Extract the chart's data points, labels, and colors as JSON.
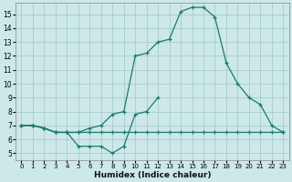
{
  "xlabel": "Humidex (Indice chaleur)",
  "bg_color": "#cce8e8",
  "line_color": "#1a7a6e",
  "grid_color": "#aacccc",
  "xlim": [
    -0.5,
    23.5
  ],
  "ylim": [
    4.5,
    15.8
  ],
  "xticks": [
    0,
    1,
    2,
    3,
    4,
    5,
    6,
    7,
    8,
    9,
    10,
    11,
    12,
    13,
    14,
    15,
    16,
    17,
    18,
    19,
    20,
    21,
    22,
    23
  ],
  "yticks": [
    5,
    6,
    7,
    8,
    9,
    10,
    11,
    12,
    13,
    14,
    15
  ],
  "line1_x": [
    0,
    1,
    2,
    3,
    4,
    5,
    6,
    7,
    8,
    9,
    10,
    11,
    12,
    13,
    14,
    15,
    16,
    17,
    18,
    19,
    20,
    21,
    22,
    23
  ],
  "line1_y": [
    7.0,
    7.0,
    6.8,
    6.5,
    6.5,
    6.5,
    6.8,
    7.0,
    7.8,
    8.0,
    12.0,
    12.2,
    13.0,
    13.2,
    15.2,
    15.5,
    15.5,
    14.8,
    11.5,
    10.0,
    9.0,
    8.5,
    7.0,
    6.5
  ],
  "line2_x": [
    0,
    1,
    2,
    3,
    4,
    5,
    6,
    7,
    8,
    9,
    10,
    11,
    12,
    13,
    14,
    15,
    16,
    17,
    18,
    19,
    20,
    21,
    22,
    23
  ],
  "line2_y": [
    7.0,
    7.0,
    6.8,
    6.5,
    6.5,
    6.5,
    6.5,
    6.5,
    6.5,
    6.5,
    6.5,
    6.5,
    6.5,
    6.5,
    6.5,
    6.5,
    6.5,
    6.5,
    6.5,
    6.5,
    6.5,
    6.5,
    6.5,
    6.5
  ],
  "line3_x": [
    0,
    1,
    2,
    3,
    4,
    5,
    6,
    7,
    8,
    9,
    10,
    11,
    12
  ],
  "line3_y": [
    7.0,
    7.0,
    6.8,
    6.5,
    6.5,
    5.5,
    5.5,
    5.5,
    5.0,
    5.5,
    7.8,
    8.0,
    9.0
  ]
}
